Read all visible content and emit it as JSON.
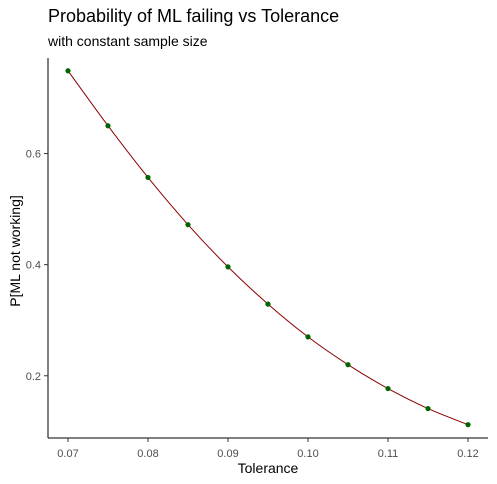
{
  "chart_data": {
    "type": "line",
    "title": "Probability of ML failing vs Tolerance",
    "subtitle": "with constant sample size",
    "xlabel": "Tolerance",
    "ylabel": "P[ML not working]",
    "xlim": [
      0.0675,
      0.1225
    ],
    "ylim": [
      0.088,
      0.772
    ],
    "xticks": [
      "0.07",
      "0.08",
      "0.09",
      "0.10",
      "0.11",
      "0.12"
    ],
    "xtick_values": [
      0.07,
      0.08,
      0.09,
      0.1,
      0.11,
      0.12
    ],
    "yticks": [
      "0.2",
      "0.4",
      "0.6"
    ],
    "ytick_values": [
      0.2,
      0.4,
      0.6
    ],
    "grid": false,
    "series": [
      {
        "x": [
          0.07,
          0.075,
          0.08,
          0.085,
          0.09,
          0.095,
          0.1,
          0.105,
          0.11,
          0.115,
          0.12
        ],
        "y": [
          0.749,
          0.65,
          0.557,
          0.472,
          0.396,
          0.329,
          0.27,
          0.22,
          0.177,
          0.141,
          0.112
        ],
        "line_color": "#8b0000",
        "point_color": "#006400"
      }
    ]
  }
}
